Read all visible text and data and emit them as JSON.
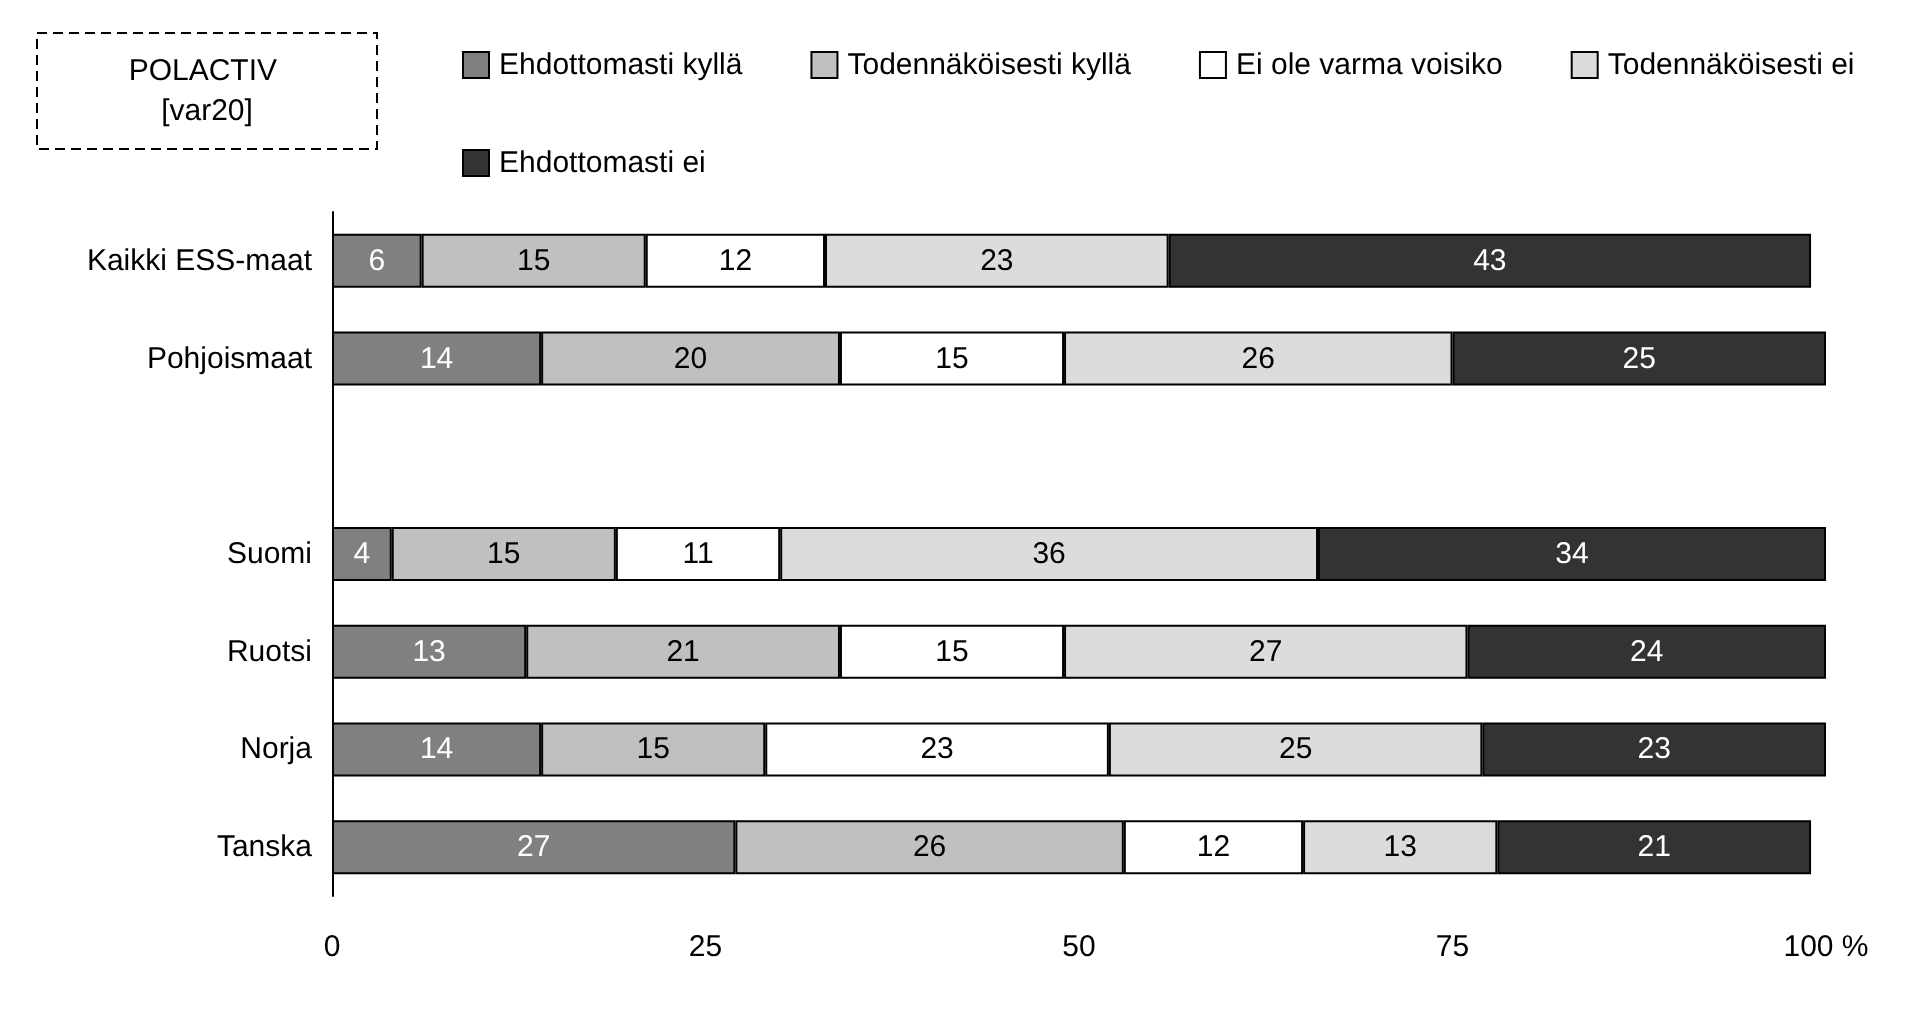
{
  "chart_data": {
    "type": "bar",
    "orientation": "horizontal",
    "stacked": true,
    "legend_title": "POLACTIV [var20]",
    "categories": [
      "Kaikki ESS-maat",
      "Pohjoismaat",
      null,
      "Suomi",
      "Ruotsi",
      "Norja",
      "Tanska"
    ],
    "series": [
      {
        "name": "Ehdottomasti kyllä",
        "color": "#808080",
        "values": [
          6,
          14,
          null,
          4,
          13,
          14,
          27
        ]
      },
      {
        "name": "Todennäköisesti kyllä",
        "color": "#c0c0c0",
        "values": [
          15,
          20,
          null,
          15,
          21,
          15,
          26
        ]
      },
      {
        "name": "Ei ole varma voisiko",
        "color": "#ffffff",
        "values": [
          12,
          15,
          null,
          11,
          15,
          23,
          12
        ]
      },
      {
        "name": "Todennäköisesti ei",
        "color": "#dcdcdc",
        "values": [
          23,
          26,
          null,
          36,
          27,
          25,
          13
        ]
      },
      {
        "name": "Ehdottomasti ei",
        "color": "#333333",
        "values": [
          43,
          25,
          null,
          34,
          24,
          23,
          21
        ]
      }
    ],
    "xlim": [
      0,
      100
    ],
    "xticks": [
      0,
      25,
      50,
      75,
      {
        "value": 100,
        "label": "100 %"
      }
    ],
    "data_labels": true,
    "legend": "top",
    "grid": false
  }
}
